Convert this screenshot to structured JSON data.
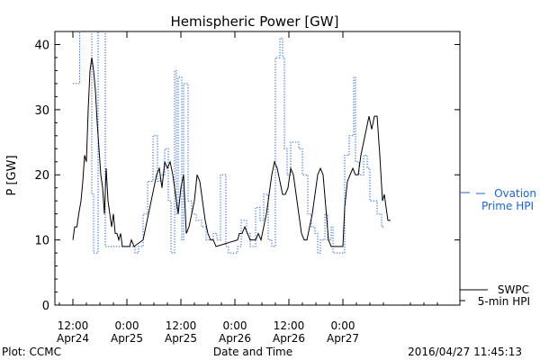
{
  "chart_data": {
    "type": "line",
    "title": "Hemispheric Power [GW]",
    "xlabel": "Date and Time",
    "ylabel": "P [GW]",
    "ylim": [
      0,
      42
    ],
    "xlim": [
      -4,
      86
    ],
    "yticks": [
      0,
      10,
      20,
      30,
      40
    ],
    "xticks": [
      {
        "x": 0,
        "line1": "12:00",
        "line2": "Apr24"
      },
      {
        "x": 12,
        "line1": "0:00",
        "line2": "Apr25"
      },
      {
        "x": 24,
        "line1": "12:00",
        "line2": "Apr25"
      },
      {
        "x": 36,
        "line1": "0:00",
        "line2": "Apr26"
      },
      {
        "x": 48,
        "line1": "12:00",
        "line2": "Apr26"
      },
      {
        "x": 60,
        "line1": "0:00",
        "line2": "Apr27"
      }
    ],
    "grid": false,
    "legend_position": "right",
    "series": [
      {
        "name": "Ovation Prime HPI",
        "legend_line1": "Ovation",
        "legend_line2": "Prime HPI",
        "color": "#1e63d6",
        "style": "dotted-step",
        "points": [
          [
            0,
            34
          ],
          [
            1.5,
            42
          ],
          [
            3,
            42
          ],
          [
            4.2,
            17
          ],
          [
            4.6,
            8
          ],
          [
            5.4,
            8
          ],
          [
            5.6,
            42
          ],
          [
            6.8,
            42
          ],
          [
            7.2,
            9
          ],
          [
            13,
            9
          ],
          [
            13.8,
            8
          ],
          [
            14.6,
            9
          ],
          [
            15.6,
            14
          ],
          [
            16.6,
            19
          ],
          [
            17.8,
            26
          ],
          [
            18.8,
            19
          ],
          [
            19.4,
            20
          ],
          [
            20.4,
            24
          ],
          [
            21.2,
            16
          ],
          [
            21.8,
            8
          ],
          [
            22.2,
            8
          ],
          [
            22.6,
            36
          ],
          [
            23,
            14
          ],
          [
            23.4,
            35
          ],
          [
            24.2,
            10
          ],
          [
            24.6,
            34
          ],
          [
            25.6,
            16
          ],
          [
            26.4,
            14
          ],
          [
            27.4,
            13
          ],
          [
            28.6,
            12
          ],
          [
            29.6,
            10
          ],
          [
            30.6,
            10
          ],
          [
            31.2,
            11
          ],
          [
            32,
            10
          ],
          [
            32.8,
            20
          ],
          [
            34,
            9
          ],
          [
            34.6,
            8
          ],
          [
            35.4,
            8
          ],
          [
            36.6,
            9
          ],
          [
            37.4,
            13
          ],
          [
            38.6,
            11
          ],
          [
            39.4,
            9
          ],
          [
            40.6,
            15
          ],
          [
            41.6,
            13
          ],
          [
            42.4,
            17
          ],
          [
            43.4,
            10
          ],
          [
            44.2,
            9
          ],
          [
            45,
            38
          ],
          [
            46,
            41
          ],
          [
            46.6,
            38
          ],
          [
            47,
            24
          ],
          [
            47.6,
            20
          ],
          [
            48.4,
            25
          ],
          [
            50.2,
            24
          ],
          [
            51,
            20
          ],
          [
            52.2,
            14
          ],
          [
            53,
            12
          ],
          [
            53.8,
            11
          ],
          [
            54.4,
            8
          ],
          [
            55,
            10
          ],
          [
            56,
            14
          ],
          [
            56.6,
            10
          ],
          [
            57.4,
            12
          ],
          [
            57.8,
            8
          ],
          [
            60,
            8
          ],
          [
            60.4,
            23
          ],
          [
            61.4,
            26
          ],
          [
            62.4,
            35
          ],
          [
            62.8,
            22
          ],
          [
            63.6,
            20
          ],
          [
            64.6,
            23
          ],
          [
            65.4,
            21
          ],
          [
            66,
            16
          ],
          [
            67.6,
            14
          ],
          [
            68.6,
            12
          ],
          [
            69,
            12
          ]
        ]
      },
      {
        "name": "SWPC 5-min HPI",
        "legend_line1": "SWPC",
        "legend_line2": "5-min HPI",
        "color": "#000000",
        "style": "solid",
        "points": [
          [
            0,
            10
          ],
          [
            0.4,
            12
          ],
          [
            0.9,
            12
          ],
          [
            1.3,
            14
          ],
          [
            1.8,
            16
          ],
          [
            2.2,
            19
          ],
          [
            2.6,
            23
          ],
          [
            3,
            22
          ],
          [
            3.4,
            30
          ],
          [
            3.8,
            36
          ],
          [
            4.2,
            38
          ],
          [
            4.6,
            36
          ],
          [
            5,
            33
          ],
          [
            5.4,
            28
          ],
          [
            5.8,
            24
          ],
          [
            6.2,
            20
          ],
          [
            6.6,
            18
          ],
          [
            7,
            14
          ],
          [
            7.4,
            21
          ],
          [
            7.8,
            16
          ],
          [
            8.2,
            14
          ],
          [
            8.6,
            12
          ],
          [
            9,
            14
          ],
          [
            9.4,
            11
          ],
          [
            9.8,
            11
          ],
          [
            10.2,
            10
          ],
          [
            10.6,
            11
          ],
          [
            11,
            9
          ],
          [
            11.4,
            9
          ],
          [
            12.6,
            9
          ],
          [
            13,
            10
          ],
          [
            13.6,
            9
          ],
          [
            15.6,
            10
          ],
          [
            16.2,
            12
          ],
          [
            16.8,
            14
          ],
          [
            17.4,
            16
          ],
          [
            18,
            18
          ],
          [
            18.6,
            20
          ],
          [
            19.2,
            21
          ],
          [
            19.8,
            18
          ],
          [
            20.4,
            22
          ],
          [
            21,
            21
          ],
          [
            21.6,
            22
          ],
          [
            22.2,
            20
          ],
          [
            22.8,
            17
          ],
          [
            23.4,
            14
          ],
          [
            24,
            18
          ],
          [
            24.6,
            20
          ],
          [
            25.2,
            11
          ],
          [
            25.8,
            12
          ],
          [
            26.4,
            14
          ],
          [
            27,
            16
          ],
          [
            27.6,
            20
          ],
          [
            28.2,
            19
          ],
          [
            28.8,
            16
          ],
          [
            29.4,
            13
          ],
          [
            30,
            11
          ],
          [
            30.6,
            10
          ],
          [
            31.2,
            10
          ],
          [
            31.8,
            9
          ],
          [
            36.6,
            10
          ],
          [
            37,
            11
          ],
          [
            37.6,
            11
          ],
          [
            38.2,
            12
          ],
          [
            38.8,
            11
          ],
          [
            39.4,
            10
          ],
          [
            40,
            10
          ],
          [
            40.6,
            10
          ],
          [
            41.2,
            11
          ],
          [
            41.8,
            10
          ],
          [
            42.4,
            12
          ],
          [
            43,
            14
          ],
          [
            43.6,
            17
          ],
          [
            44.2,
            20
          ],
          [
            44.8,
            22
          ],
          [
            45.4,
            21
          ],
          [
            46,
            19
          ],
          [
            46.6,
            17
          ],
          [
            47.2,
            17
          ],
          [
            47.8,
            18
          ],
          [
            48.4,
            21
          ],
          [
            49,
            20
          ],
          [
            49.6,
            17
          ],
          [
            50.2,
            14
          ],
          [
            50.8,
            11
          ],
          [
            51.4,
            10
          ],
          [
            52,
            10
          ],
          [
            52.6,
            12
          ],
          [
            53.2,
            14
          ],
          [
            53.8,
            17
          ],
          [
            54.4,
            20
          ],
          [
            55,
            21
          ],
          [
            55.6,
            20
          ],
          [
            56.2,
            15
          ],
          [
            56.8,
            10
          ],
          [
            57.4,
            9
          ],
          [
            60,
            9
          ],
          [
            60.4,
            15
          ],
          [
            61,
            19
          ],
          [
            61.6,
            20
          ],
          [
            62.2,
            21
          ],
          [
            62.8,
            20
          ],
          [
            63.4,
            20
          ],
          [
            64,
            23
          ],
          [
            64.6,
            25
          ],
          [
            65.2,
            27
          ],
          [
            65.8,
            29
          ],
          [
            66.4,
            27
          ],
          [
            67,
            29
          ],
          [
            67.6,
            29
          ],
          [
            68.2,
            23
          ],
          [
            68.8,
            16
          ],
          [
            69.2,
            17
          ],
          [
            69.6,
            15
          ],
          [
            70,
            13
          ],
          [
            70.6,
            13
          ]
        ]
      }
    ]
  },
  "footer": {
    "left": "Plot: CCMC",
    "center": "Date and Time",
    "right": "2016/04/27 11:45:13"
  }
}
